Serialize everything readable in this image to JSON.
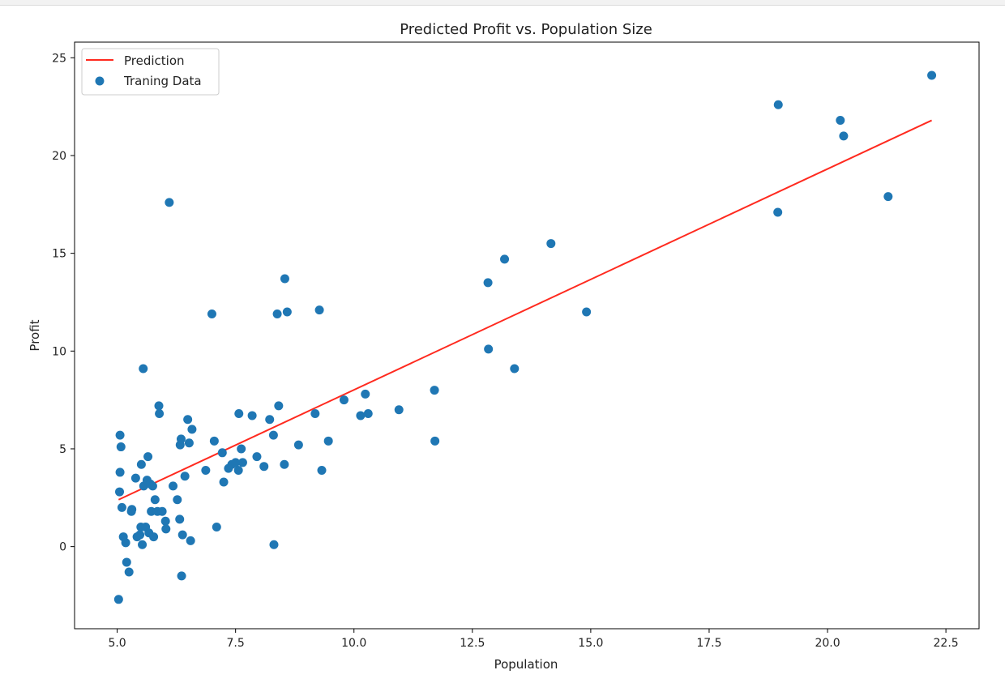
{
  "chart_data": {
    "type": "scatter",
    "title": "Predicted Profit vs. Population Size",
    "xlabel": "Population",
    "ylabel": "Profit",
    "xlim": [
      4.1,
      23.2
    ],
    "ylim": [
      -4.2,
      25.8
    ],
    "x_ticks": [
      5.0,
      7.5,
      10.0,
      12.5,
      15.0,
      17.5,
      20.0,
      22.5
    ],
    "x_tick_labels": [
      "5.0",
      "7.5",
      "10.0",
      "12.5",
      "15.0",
      "17.5",
      "20.0",
      "22.5"
    ],
    "y_ticks": [
      0,
      5,
      10,
      15,
      20,
      25
    ],
    "y_tick_labels": [
      "0",
      "5",
      "10",
      "15",
      "20",
      "25"
    ],
    "grid": false,
    "legend_position": "top-left",
    "colors": {
      "prediction": "#ff2a1f",
      "training": "#1f77b4"
    },
    "series": [
      {
        "name": "Prediction",
        "kind": "line",
        "x": [
          5.03,
          22.2
        ],
        "y": [
          2.4,
          21.8
        ]
      },
      {
        "name": "Traning Data",
        "kind": "scatter",
        "points": [
          [
            5.03,
            -2.7
          ],
          [
            5.05,
            2.8
          ],
          [
            5.06,
            3.8
          ],
          [
            5.06,
            5.7
          ],
          [
            5.08,
            5.1
          ],
          [
            5.1,
            2.0
          ],
          [
            5.13,
            0.5
          ],
          [
            5.18,
            0.2
          ],
          [
            5.2,
            -0.8
          ],
          [
            5.25,
            -1.3
          ],
          [
            5.3,
            1.8
          ],
          [
            5.31,
            1.9
          ],
          [
            5.39,
            3.5
          ],
          [
            5.42,
            0.5
          ],
          [
            5.48,
            0.6
          ],
          [
            5.5,
            1.0
          ],
          [
            5.51,
            4.2
          ],
          [
            5.53,
            0.1
          ],
          [
            5.55,
            9.1
          ],
          [
            5.56,
            3.1
          ],
          [
            5.6,
            1.0
          ],
          [
            5.63,
            3.4
          ],
          [
            5.65,
            4.6
          ],
          [
            5.67,
            0.7
          ],
          [
            5.7,
            3.2
          ],
          [
            5.72,
            1.8
          ],
          [
            5.75,
            3.1
          ],
          [
            5.77,
            0.5
          ],
          [
            5.8,
            2.4
          ],
          [
            5.85,
            1.8
          ],
          [
            5.88,
            7.2
          ],
          [
            5.89,
            6.8
          ],
          [
            5.95,
            1.8
          ],
          [
            6.02,
            1.3
          ],
          [
            6.03,
            0.9
          ],
          [
            6.1,
            17.6
          ],
          [
            6.18,
            3.1
          ],
          [
            6.27,
            2.4
          ],
          [
            6.32,
            1.4
          ],
          [
            6.33,
            5.2
          ],
          [
            6.35,
            5.5
          ],
          [
            6.36,
            -1.5
          ],
          [
            6.38,
            0.6
          ],
          [
            6.43,
            3.6
          ],
          [
            6.49,
            6.5
          ],
          [
            6.52,
            5.3
          ],
          [
            6.55,
            0.3
          ],
          [
            6.58,
            6.0
          ],
          [
            6.87,
            3.9
          ],
          [
            7.0,
            11.9
          ],
          [
            7.05,
            5.4
          ],
          [
            7.1,
            1.0
          ],
          [
            7.22,
            4.8
          ],
          [
            7.25,
            3.3
          ],
          [
            7.35,
            4.0
          ],
          [
            7.42,
            4.2
          ],
          [
            7.5,
            4.3
          ],
          [
            7.56,
            3.9
          ],
          [
            7.57,
            6.8
          ],
          [
            7.62,
            5.0
          ],
          [
            7.65,
            4.3
          ],
          [
            7.85,
            6.7
          ],
          [
            7.95,
            4.6
          ],
          [
            8.1,
            4.1
          ],
          [
            8.22,
            6.5
          ],
          [
            8.3,
            5.7
          ],
          [
            8.31,
            0.1
          ],
          [
            8.38,
            11.9
          ],
          [
            8.41,
            7.2
          ],
          [
            8.53,
            4.2
          ],
          [
            8.54,
            13.7
          ],
          [
            8.59,
            12.0
          ],
          [
            8.83,
            5.2
          ],
          [
            9.18,
            6.8
          ],
          [
            9.27,
            12.1
          ],
          [
            9.32,
            3.9
          ],
          [
            9.46,
            5.4
          ],
          [
            9.79,
            7.5
          ],
          [
            10.14,
            6.7
          ],
          [
            10.24,
            7.8
          ],
          [
            10.3,
            6.8
          ],
          [
            10.95,
            7.0
          ],
          [
            11.7,
            8.0
          ],
          [
            11.71,
            5.4
          ],
          [
            12.83,
            13.5
          ],
          [
            12.84,
            10.1
          ],
          [
            13.18,
            14.7
          ],
          [
            13.39,
            9.1
          ],
          [
            14.16,
            15.5
          ],
          [
            14.91,
            12.0
          ],
          [
            18.95,
            17.1
          ],
          [
            18.96,
            22.6
          ],
          [
            20.27,
            21.8
          ],
          [
            20.34,
            21.0
          ],
          [
            21.28,
            17.9
          ],
          [
            22.2,
            24.1
          ]
        ]
      }
    ]
  }
}
